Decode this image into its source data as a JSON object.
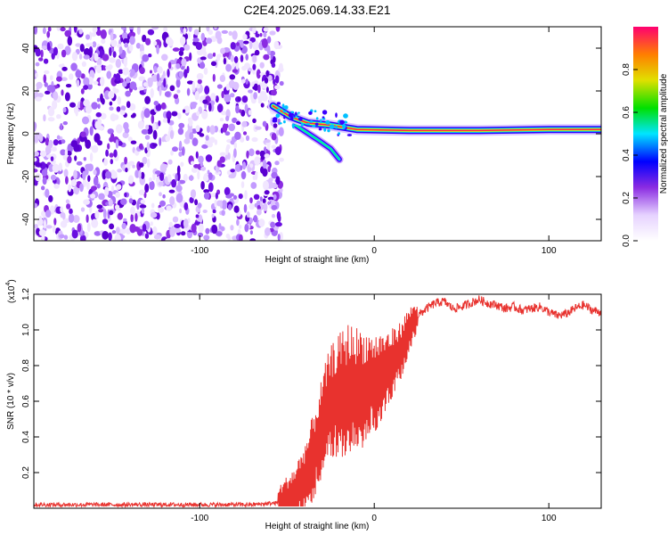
{
  "title": "C2E4.2025.069.14.33.E21",
  "chart_data": [
    {
      "type": "heatmap",
      "title": "",
      "xlabel": "Height of straight line (km)",
      "ylabel": "Frequency (Hz)",
      "xlim": [
        -195,
        130
      ],
      "ylim": [
        -50,
        50
      ],
      "xticks": [
        -100,
        0,
        100
      ],
      "yticks": [
        -40,
        -20,
        0,
        20,
        40
      ],
      "colorbar": {
        "label": "Normalized spectral amplitude",
        "range": [
          0,
          1
        ],
        "ticks": [
          "0.0",
          "0.2",
          "0.4",
          "0.6",
          "0.8"
        ]
      },
      "features": {
        "noise_region_x": [
          -195,
          -53
        ],
        "signal_track": [
          {
            "x": -58,
            "y": 13
          },
          {
            "x": -48,
            "y": 8
          },
          {
            "x": -38,
            "y": 5
          },
          {
            "x": -25,
            "y": 4
          },
          {
            "x": -10,
            "y": 2
          },
          {
            "x": 20,
            "y": 1.5
          },
          {
            "x": 60,
            "y": 1.5
          },
          {
            "x": 100,
            "y": 2
          },
          {
            "x": 130,
            "y": 2
          }
        ],
        "branch_track": [
          {
            "x": -45,
            "y": 4
          },
          {
            "x": -32,
            "y": -3
          },
          {
            "x": -25,
            "y": -7
          },
          {
            "x": -20,
            "y": -12
          }
        ]
      }
    },
    {
      "type": "line",
      "title": "",
      "xlabel": "Height of straight line (km)",
      "ylabel": "SNR (10 * v/v)",
      "y_multiplier": "(x10",
      "y_multiplier_exp": "4",
      "xlim": [
        -195,
        130
      ],
      "ylim": [
        0,
        1.2
      ],
      "xticks": [
        -100,
        0,
        100
      ],
      "yticks": [
        "0.2",
        "0.4",
        "0.6",
        "0.8",
        "1.0",
        "1.2"
      ],
      "color": "#e8322e",
      "series": [
        {
          "x": [
            -195,
            -150,
            -100,
            -70,
            -55,
            -45,
            -38,
            -34,
            -30,
            -27,
            -24,
            -20,
            -17,
            -14,
            -10,
            -5,
            0,
            5,
            10,
            15,
            20,
            25,
            30,
            35,
            40,
            45,
            50,
            55,
            60,
            65,
            70,
            75,
            80,
            85,
            90,
            95,
            100,
            105,
            110,
            115,
            120,
            125,
            130
          ],
          "values": [
            0.02,
            0.02,
            0.02,
            0.02,
            0.03,
            0.08,
            0.2,
            0.32,
            0.45,
            0.55,
            0.6,
            0.62,
            0.63,
            0.65,
            0.66,
            0.68,
            0.7,
            0.75,
            0.8,
            0.88,
            1.0,
            1.08,
            1.12,
            1.15,
            1.16,
            1.12,
            1.13,
            1.15,
            1.17,
            1.15,
            1.14,
            1.12,
            1.13,
            1.11,
            1.12,
            1.13,
            1.1,
            1.08,
            1.09,
            1.12,
            1.14,
            1.11,
            1.1
          ]
        }
      ]
    }
  ]
}
